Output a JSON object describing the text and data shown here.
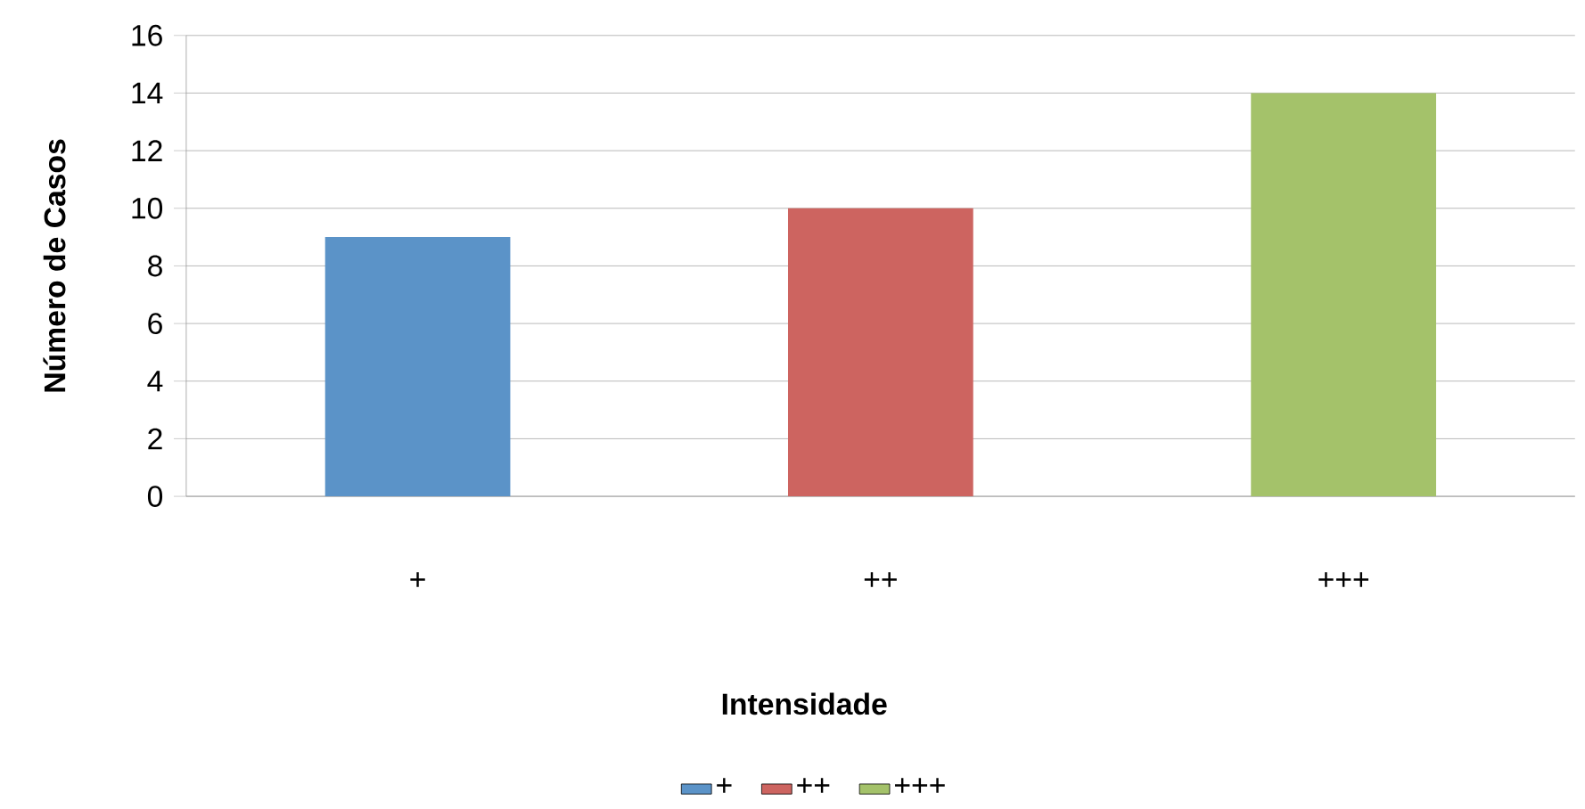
{
  "chart_data": {
    "type": "bar",
    "xlabel": "Intensidade",
    "ylabel": "Número de Casos",
    "categories": [
      "+",
      "++",
      "+++"
    ],
    "series": [
      {
        "name": "+",
        "color": "#5b93c8",
        "values": [
          9,
          null,
          null
        ]
      },
      {
        "name": "++",
        "color": "#cd6460",
        "values": [
          null,
          10,
          null
        ]
      },
      {
        "name": "+++",
        "color": "#a4c26a",
        "values": [
          null,
          null,
          14
        ]
      }
    ],
    "ylim": [
      0,
      16
    ],
    "yticks": [
      0,
      2,
      4,
      6,
      8,
      10,
      12,
      14,
      16
    ],
    "grid": "y",
    "legend": "bottom"
  }
}
